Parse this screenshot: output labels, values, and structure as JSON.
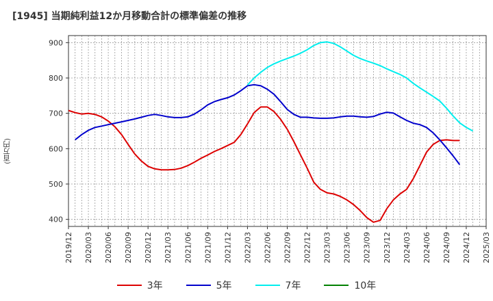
{
  "chart_data": {
    "type": "line",
    "title": "[1945]  当期純利益12か月移動合計の標準偏差の推移",
    "ylabel": "(百万円)",
    "xlabel": "",
    "ylim": [
      380,
      920
    ],
    "yticks": [
      400,
      500,
      600,
      700,
      800,
      900
    ],
    "x_ticks": [
      "2019/12",
      "2020/03",
      "2020/06",
      "2020/09",
      "2020/12",
      "2021/03",
      "2021/06",
      "2021/09",
      "2021/12",
      "2022/03",
      "2022/06",
      "2022/09",
      "2022/12",
      "2023/03",
      "2023/06",
      "2023/09",
      "2023/12",
      "2024/03",
      "2024/06",
      "2024/09",
      "2024/12",
      "2025/03"
    ],
    "grid": true,
    "legend_position": "bottom",
    "series": [
      {
        "name": "3年",
        "color": "#dd0000",
        "start": "2019/12",
        "values": [
          708,
          702,
          698,
          700,
          697,
          690,
          678,
          662,
          640,
          612,
          585,
          565,
          550,
          543,
          540,
          540,
          541,
          545,
          552,
          562,
          573,
          582,
          592,
          600,
          609,
          618,
          640,
          670,
          702,
          718,
          718,
          705,
          683,
          655,
          620,
          582,
          545,
          505,
          485,
          475,
          472,
          465,
          455,
          442,
          425,
          405,
          392,
          397,
          430,
          455,
          472,
          485,
          515,
          552,
          590,
          612,
          623,
          625,
          623,
          623
        ]
      },
      {
        "name": "5年",
        "color": "#0000cc",
        "start": "2020/01",
        "values": [
          625,
          640,
          652,
          660,
          664,
          668,
          672,
          676,
          680,
          684,
          689,
          694,
          697,
          694,
          690,
          688,
          688,
          690,
          698,
          710,
          724,
          733,
          739,
          744,
          752,
          764,
          778,
          781,
          778,
          768,
          754,
          733,
          711,
          697,
          689,
          689,
          687,
          686,
          686,
          687,
          690,
          692,
          692,
          690,
          689,
          691,
          698,
          703,
          701,
          690,
          680,
          672,
          668,
          660,
          645,
          625,
          603,
          580,
          555
        ]
      },
      {
        "name": "7年",
        "color": "#00eeee",
        "start": "2022/03",
        "values": [
          780,
          800,
          816,
          830,
          840,
          848,
          855,
          862,
          870,
          880,
          892,
          900,
          902,
          898,
          888,
          876,
          864,
          855,
          848,
          842,
          835,
          826,
          818,
          810,
          800,
          785,
          772,
          760,
          748,
          735,
          715,
          693,
          673,
          660,
          650
        ]
      },
      {
        "name": "10年",
        "color": "#008000",
        "values": []
      }
    ]
  }
}
